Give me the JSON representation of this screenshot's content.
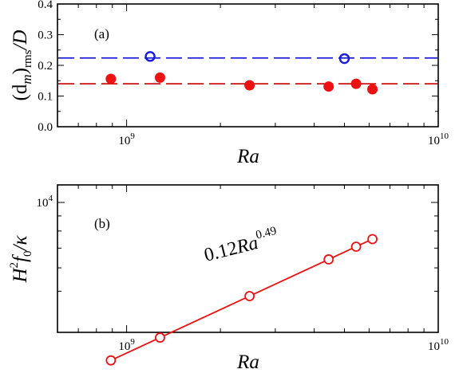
{
  "chart_data": [
    {
      "type": "scatter",
      "panel_label": "(a)",
      "xlabel": "Ra",
      "ylabel": {
        "main": "(d",
        "sub1": "m",
        "close": ")",
        "sub2": "rms",
        "tail": "/D"
      },
      "xscale": "log",
      "xlim": [
        600000000,
        10000000000
      ],
      "ylim": [
        0,
        0.4
      ],
      "yticks": [
        "0.0",
        "0.1",
        "0.2",
        "0.3",
        "0.4"
      ],
      "yticks_values": [
        0,
        0.1,
        0.2,
        0.3,
        0.4
      ],
      "xticks": [
        {
          "value": 1000000000,
          "base": "10",
          "exp": "9"
        },
        {
          "value": 10000000000,
          "base": "10",
          "exp": "10"
        }
      ],
      "series": [
        {
          "marker": "filled-circle",
          "color": "#ee1111",
          "points": [
            {
              "x": 890000000,
              "y": 0.156
            },
            {
              "x": 1280000000,
              "y": 0.16
            },
            {
              "x": 2480000000,
              "y": 0.135
            },
            {
              "x": 4450000000,
              "y": 0.131
            },
            {
              "x": 5450000000,
              "y": 0.14
            },
            {
              "x": 6150000000,
              "y": 0.122
            }
          ]
        },
        {
          "marker": "open-circle",
          "color": "#1a1adf",
          "points": [
            {
              "x": 1190000000,
              "y": 0.229
            },
            {
              "x": 5000000000,
              "y": 0.222
            }
          ]
        }
      ],
      "reference_lines": [
        {
          "y": 0.224,
          "color": "#1a1adf",
          "style": "dashed"
        },
        {
          "y": 0.14,
          "color": "#cc1111",
          "style": "dashed"
        }
      ]
    },
    {
      "type": "line",
      "panel_label": "(b)",
      "xlabel": "Ra",
      "ylabel": {
        "H": "H",
        "sup": "2",
        "f": "f",
        "sub": "0",
        "tail": "/κ"
      },
      "xscale": "log",
      "yscale": "log",
      "xlim": [
        600000000,
        10000000000
      ],
      "yticks": [
        {
          "value": 10000,
          "base": "10",
          "exp": "4"
        }
      ],
      "xticks": [
        {
          "value": 1000000000,
          "base": "10",
          "exp": "9"
        },
        {
          "value": 10000000000,
          "base": "10",
          "exp": "10"
        }
      ],
      "series": [
        {
          "marker": "open-circle",
          "color": "#ee1111",
          "x": [
            890000000,
            1280000000,
            2480000000,
            4450000000,
            5450000000,
            6150000000
          ]
        }
      ],
      "fit": {
        "label_main": "0.12",
        "label_var": "Ra",
        "label_exp": "0.49",
        "color": "#8b1a1a",
        "line_color": "#ee1111"
      }
    }
  ]
}
